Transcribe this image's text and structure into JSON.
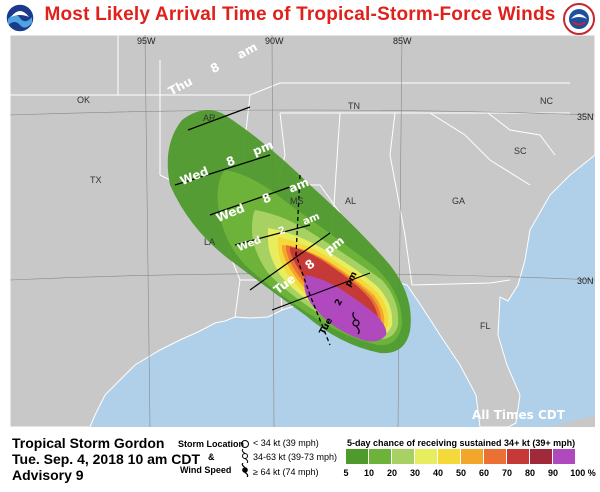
{
  "title": "Most Likely Arrival Time of Tropical-Storm-Force Winds",
  "map": {
    "longitude_labels": [
      "95W",
      "90W",
      "85W"
    ],
    "latitude_labels": [
      "35N",
      "30N"
    ],
    "state_labels": [
      "OK",
      "AR",
      "TN",
      "NC",
      "SC",
      "MS",
      "AL",
      "GA",
      "LA",
      "FL",
      "TX"
    ],
    "time_labels": {
      "thu_8am": [
        "Thu",
        "8",
        "am"
      ],
      "wed_8pm": [
        "Wed",
        "8",
        "pm"
      ],
      "wed_8am": [
        "Wed",
        "8",
        "am"
      ],
      "wed_2am": [
        "Wed",
        "2",
        "am"
      ],
      "tue_8pm": [
        "Tue",
        "8",
        "pm"
      ],
      "tue_2pm": [
        "Tue",
        "2",
        "pm"
      ]
    },
    "times_note": "All Times CDT",
    "colors": {
      "land": "#c8c8c8",
      "water": "#b0cfe8",
      "borders": "#ffffff"
    }
  },
  "info": {
    "storm": "Tropical Storm Gordon",
    "date": "Tue. Sep. 4, 2018  10 am CDT",
    "advisory": "Advisory 9"
  },
  "legend": {
    "storm_location": "Storm Location",
    "amp": "&",
    "wind_speed": "Wind Speed",
    "items": [
      {
        "icon": "open-circle-icon",
        "label": "< 34 kt (39 mph)"
      },
      {
        "icon": "tropical-storm-icon",
        "label": "34-63 kt (39-73 mph)"
      },
      {
        "icon": "hurricane-icon",
        "label": "≥ 64 kt (74 mph)"
      }
    ]
  },
  "colorbar": {
    "title": "5-day chance of receiving sustained 34+ kt (39+ mph) winds",
    "ticks": [
      "5",
      "10",
      "20",
      "30",
      "40",
      "50",
      "60",
      "70",
      "80",
      "90",
      "100 %"
    ],
    "colors": [
      "#4e9a2b",
      "#6db33a",
      "#a8d164",
      "#e7ed5e",
      "#f5d83a",
      "#f3a72a",
      "#ea7034",
      "#c53a36",
      "#a02a3a",
      "#b049be"
    ]
  }
}
